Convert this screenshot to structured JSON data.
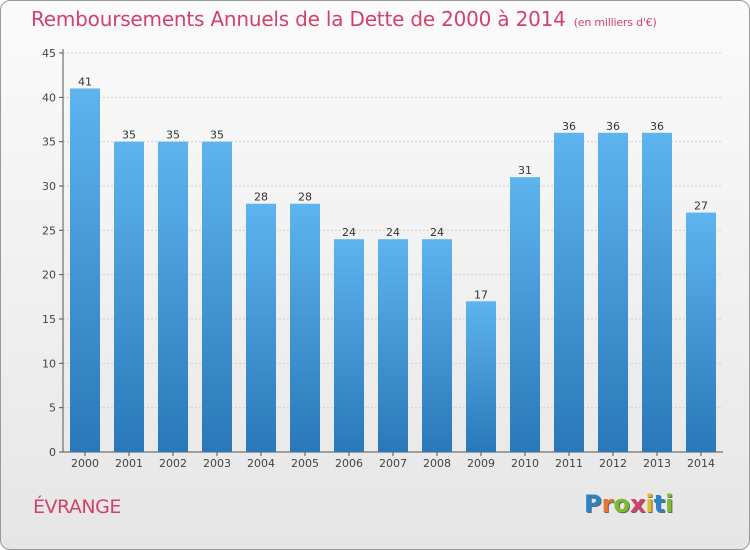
{
  "title": "Remboursements Annuels de la Dette de 2000 à 2014",
  "title_unit": "(en milliers d'€)",
  "commune": "ÉVRANGE",
  "logo": {
    "letters": [
      "P",
      "r",
      "o",
      "x",
      "i",
      "t",
      "i"
    ],
    "colors": [
      "#2a84c9",
      "#e8762b",
      "#7dbb2d",
      "#d2426b",
      "#e8b82b",
      "#2a84c9",
      "#7dbb2d"
    ]
  },
  "colors": {
    "title": "#d2426b",
    "bar_top": "#5eb4ee",
    "bar_bottom": "#2a78b8",
    "axis": "#555555",
    "grid": "#cfcfcf"
  },
  "chart_data": {
    "type": "bar",
    "title": "Remboursements Annuels de la Dette de 2000 à 2014",
    "xlabel": "",
    "ylabel": "",
    "ylim": [
      0,
      45
    ],
    "yticks": [
      0,
      5,
      10,
      15,
      20,
      25,
      30,
      35,
      40,
      45
    ],
    "grid": true,
    "categories": [
      "2000",
      "2001",
      "2002",
      "2003",
      "2004",
      "2005",
      "2006",
      "2007",
      "2008",
      "2009",
      "2010",
      "2011",
      "2012",
      "2013",
      "2014"
    ],
    "values": [
      41,
      35,
      35,
      35,
      28,
      28,
      24,
      24,
      24,
      17,
      31,
      36,
      36,
      36,
      27
    ],
    "data_labels": [
      "41",
      "35",
      "35",
      "35",
      "28",
      "28",
      "24",
      "24",
      "24",
      "17",
      "31",
      "36",
      "36",
      "36",
      "27"
    ]
  }
}
